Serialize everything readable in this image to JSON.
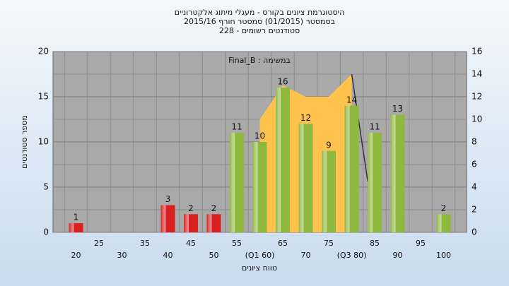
{
  "chart_data": {
    "type": "bar",
    "title": [
      "היסטוגרמת ציונים בקורס - מעגלי מיתוג אלקטרוניים",
      "בסמסטר (01/2015) סמסטר חורף 2015/16",
      "סטודנטים רשומים - 228"
    ],
    "annotation": "במשימה : Final_B",
    "ylabel": "מספר סטודנטים",
    "xlabel": "טווח ציונים",
    "categories": [
      "20",
      "25",
      "30",
      "35",
      "40",
      "45",
      "50",
      "55",
      "(Q1 60)",
      "65",
      "70",
      "75",
      "(Q3 80)",
      "85",
      "90",
      "95",
      "100"
    ],
    "values": [
      1,
      null,
      null,
      null,
      3,
      2,
      2,
      11,
      10,
      16,
      12,
      9,
      14,
      11,
      13,
      null,
      2
    ],
    "colors": [
      "#d82020",
      "#d82020",
      "#d82020",
      "#d82020",
      "#d82020",
      "#d82020",
      "#d82020",
      "#8fb83e",
      "#8fb83e",
      "#8fb83e",
      "#8fb83e",
      "#8fb83e",
      "#8fb83e",
      "#8fb83e",
      "#8fb83e",
      "#8fb83e",
      "#8fb83e"
    ],
    "ylim": [
      0,
      20
    ],
    "yticks": [
      0,
      5,
      10,
      15,
      20
    ],
    "y2lim": [
      0,
      16
    ],
    "y2ticks": [
      0,
      2,
      4,
      6,
      8,
      10,
      12,
      14,
      16
    ],
    "series": [
      {
        "type": "area",
        "axis": "y2",
        "color": "#ffc34d",
        "x": [
          60,
          65,
          70,
          75,
          80
        ],
        "values": [
          10,
          13,
          12,
          12,
          14
        ]
      },
      {
        "type": "line",
        "axis": "y2",
        "color": "#333333",
        "x": [
          80,
          83.5
        ],
        "values": [
          14,
          4.5
        ]
      }
    ],
    "grid": true
  }
}
